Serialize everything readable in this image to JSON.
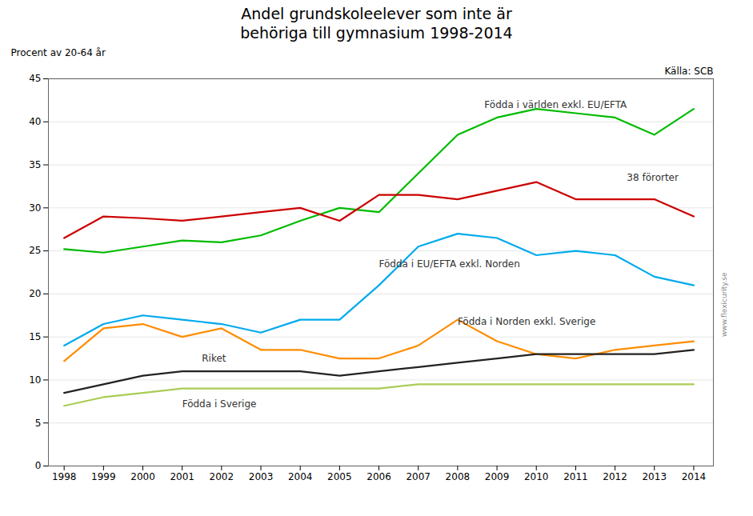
{
  "chart_data": {
    "type": "line",
    "title": "Andel grundskoleelever som inte är\nbehöriga till gymnasium 1998-2014",
    "ylabel": "Procent av 20-64 år",
    "source": "Källa: SCB",
    "watermark": "www.flexicurity.se",
    "x": [
      1998,
      1999,
      2000,
      2001,
      2002,
      2003,
      2004,
      2005,
      2006,
      2007,
      2008,
      2009,
      2010,
      2011,
      2012,
      2013,
      2014
    ],
    "series": [
      {
        "name": "Födda i världen exkl. EU/EFTA",
        "color": "#00bb00",
        "values": [
          25.2,
          24.8,
          25.5,
          26.2,
          26.0,
          26.8,
          28.5,
          30.0,
          29.5,
          34.0,
          38.5,
          40.5,
          41.5,
          41.0,
          40.5,
          38.5,
          41.5
        ]
      },
      {
        "name": "38 förorter",
        "color": "#cc0000",
        "values": [
          26.5,
          29.0,
          28.8,
          28.5,
          29.0,
          29.5,
          30.0,
          28.5,
          31.5,
          31.5,
          31.0,
          32.0,
          33.0,
          31.0,
          31.0,
          31.0,
          29.0
        ]
      },
      {
        "name": "Födda i EU/EFTA exkl. Norden",
        "color": "#00aaee",
        "values": [
          14.0,
          16.5,
          17.5,
          17.0,
          16.5,
          15.5,
          17.0,
          17.0,
          21.0,
          25.5,
          27.0,
          26.5,
          24.5,
          25.0,
          24.5,
          22.0,
          21.0
        ]
      },
      {
        "name": "Födda i Norden exkl. Sverige",
        "color": "#ff8c00",
        "values": [
          12.2,
          16.0,
          16.5,
          15.0,
          16.0,
          13.5,
          13.5,
          12.5,
          12.5,
          14.0,
          17.0,
          14.5,
          13.0,
          12.5,
          13.5,
          14.0,
          14.5
        ]
      },
      {
        "name": "Riket",
        "color": "#222222",
        "values": [
          8.5,
          9.5,
          10.5,
          11.0,
          11.0,
          11.0,
          11.0,
          10.5,
          11.0,
          11.5,
          12.0,
          12.5,
          13.0,
          13.0,
          13.0,
          13.0,
          13.5
        ]
      },
      {
        "name": "Födda i Sverige",
        "color": "#aacc55",
        "values": [
          7.0,
          8.0,
          8.5,
          9.0,
          9.0,
          9.0,
          9.0,
          9.0,
          9.0,
          9.5,
          9.5,
          9.5,
          9.5,
          9.5,
          9.5,
          9.5,
          9.5
        ]
      }
    ],
    "annotations": [
      {
        "text": "Födda i världen exkl. EU/EFTA",
        "x": 2012.3,
        "y": 42.0,
        "align": "right"
      },
      {
        "text": "38 förorter",
        "x": 2012.3,
        "y": 33.5,
        "align": "left"
      },
      {
        "text": "Födda i EU/EFTA exkl. Norden",
        "x": 2006.0,
        "y": 23.5,
        "align": "left"
      },
      {
        "text": "Födda i Norden exkl. Sverige",
        "x": 2008.0,
        "y": 16.8,
        "align": "left"
      },
      {
        "text": "Riket",
        "x": 2001.5,
        "y": 12.5,
        "align": "left"
      },
      {
        "text": "Födda i Sverige",
        "x": 2001.0,
        "y": 7.2,
        "align": "left"
      }
    ],
    "xlim": [
      1997.6,
      2014.5
    ],
    "xticks": [
      1998,
      1999,
      2000,
      2001,
      2002,
      2003,
      2004,
      2005,
      2006,
      2007,
      2008,
      2009,
      2010,
      2011,
      2012,
      2013,
      2014
    ],
    "ylim": [
      0,
      45
    ],
    "yticks": [
      0,
      5,
      10,
      15,
      20,
      25,
      30,
      35,
      40,
      45
    ],
    "grid": "y"
  }
}
